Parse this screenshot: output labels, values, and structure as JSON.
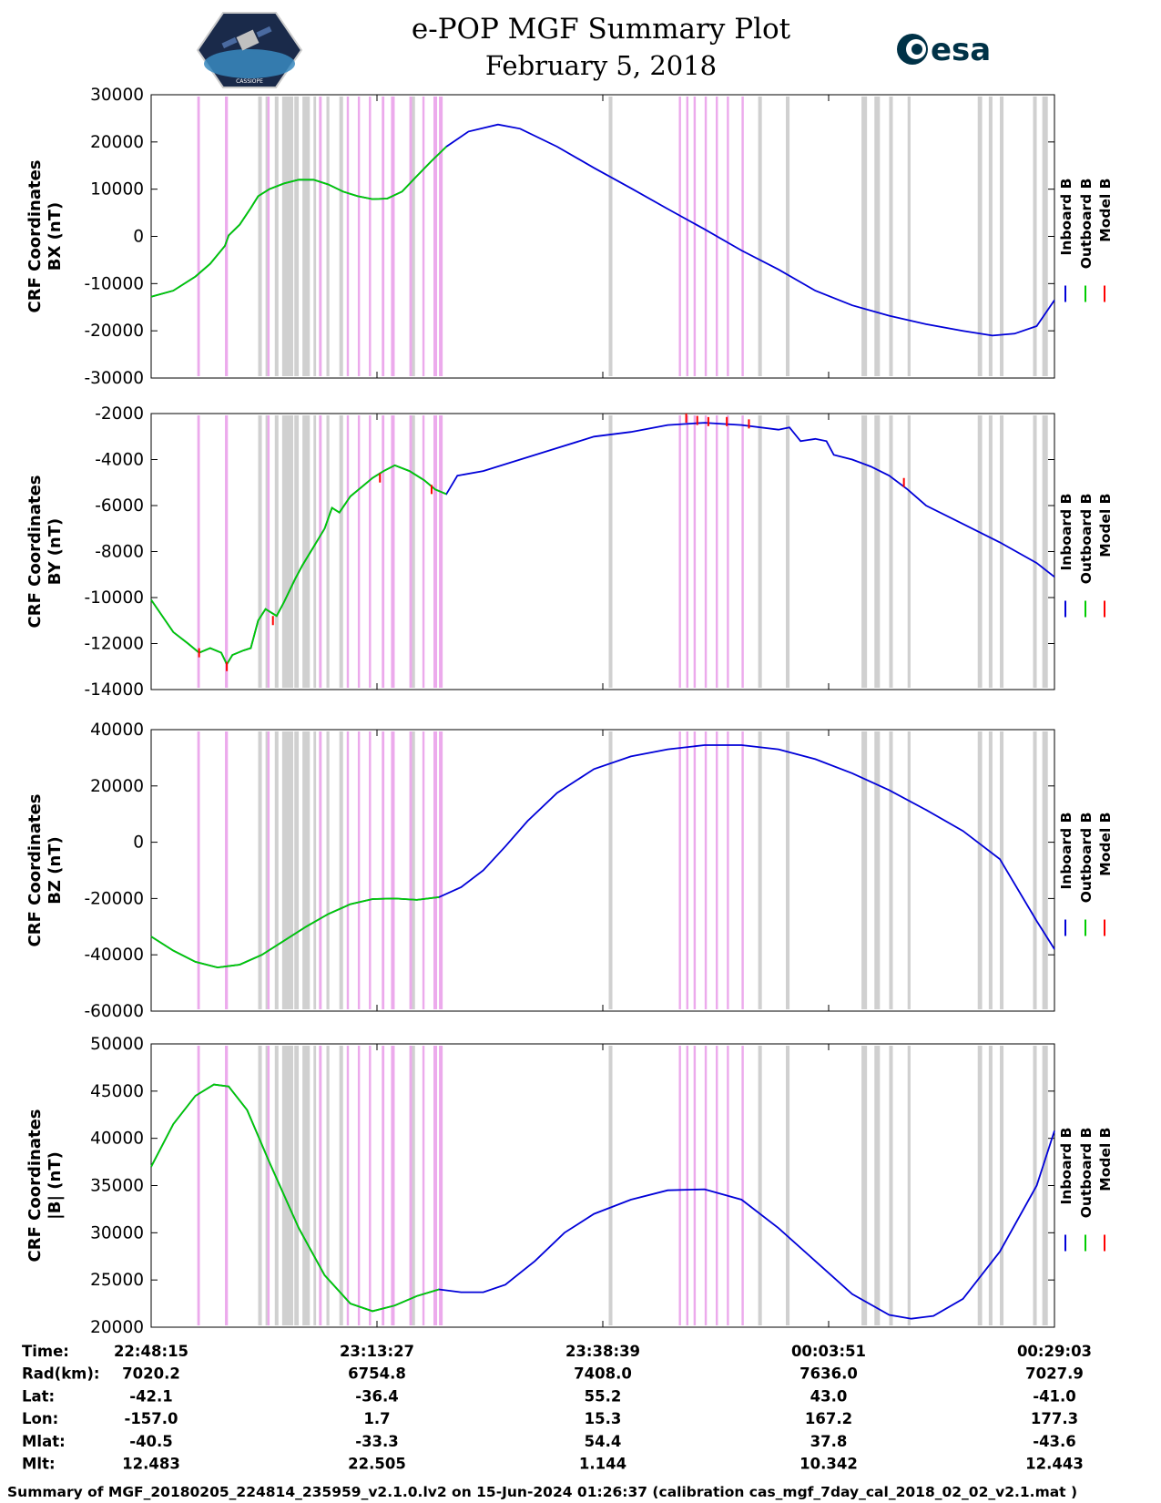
{
  "header": {
    "title": "e-POP MGF Summary Plot",
    "date": "February 5, 2018",
    "left_logo": {
      "label": "CASSIOPE"
    },
    "right_logo": {
      "label": "esa",
      "color": "#003247"
    }
  },
  "colors": {
    "inboard": "#0000d8",
    "outboard": "#00cc00",
    "model": "#ff0000",
    "gray_band": "#d0d0d0",
    "pink_band": "#ecaaec"
  },
  "chart_data": {
    "type": "line",
    "x_range": [
      0,
      2448
    ],
    "x_ticks": [
      0,
      612,
      1224,
      1836,
      2448
    ],
    "outboard_end": 800,
    "gray_bands": [
      [
        290,
        300
      ],
      [
        310,
        320
      ],
      [
        335,
        345
      ],
      [
        355,
        385
      ],
      [
        388,
        400
      ],
      [
        410,
        430
      ],
      [
        440,
        447
      ],
      [
        455,
        462
      ],
      [
        475,
        483
      ],
      [
        510,
        520
      ],
      [
        700,
        715
      ],
      [
        1240,
        1250
      ],
      [
        1645,
        1655
      ],
      [
        1720,
        1730
      ],
      [
        1925,
        1940
      ],
      [
        1960,
        1975
      ],
      [
        2000,
        2010
      ],
      [
        2050,
        2058
      ],
      [
        2240,
        2252
      ],
      [
        2270,
        2280
      ],
      [
        2300,
        2310
      ],
      [
        2390,
        2400
      ],
      [
        2415,
        2430
      ]
    ],
    "pink_bands": [
      [
        125,
        132
      ],
      [
        200,
        208
      ],
      [
        315,
        321
      ],
      [
        455,
        462
      ],
      [
        530,
        536
      ],
      [
        560,
        566
      ],
      [
        590,
        596
      ],
      [
        625,
        632
      ],
      [
        650,
        660
      ],
      [
        700,
        707
      ],
      [
        735,
        741
      ],
      [
        765,
        775
      ],
      [
        780,
        790
      ],
      [
        1430,
        1436
      ],
      [
        1450,
        1456
      ],
      [
        1470,
        1476
      ],
      [
        1500,
        1506
      ],
      [
        1530,
        1536
      ],
      [
        1560,
        1566
      ],
      [
        1600,
        1606
      ]
    ],
    "panels": [
      {
        "id": "bx",
        "ylabel_line1": "CRF Coordinates",
        "ylabel_line2": "BX (nT)",
        "ylim": [
          -30000,
          30000
        ],
        "yticks": [
          30000,
          20000,
          10000,
          0,
          -10000,
          -20000,
          -30000
        ],
        "tick_labels": [
          "30000",
          "20000",
          "10000",
          "0",
          "-10000",
          "-20000",
          "-30000"
        ],
        "points": [
          [
            0,
            -12800
          ],
          [
            60,
            -11500
          ],
          [
            120,
            -8500
          ],
          [
            160,
            -5800
          ],
          [
            200,
            -2000
          ],
          [
            210,
            200
          ],
          [
            240,
            2500
          ],
          [
            270,
            6000
          ],
          [
            290,
            8500
          ],
          [
            320,
            10000
          ],
          [
            360,
            11200
          ],
          [
            400,
            12000
          ],
          [
            440,
            12000
          ],
          [
            480,
            11000
          ],
          [
            520,
            9500
          ],
          [
            560,
            8500
          ],
          [
            600,
            7900
          ],
          [
            640,
            8000
          ],
          [
            680,
            9500
          ],
          [
            720,
            12800
          ],
          [
            760,
            16000
          ],
          [
            800,
            19000
          ],
          [
            860,
            22200
          ],
          [
            940,
            23700
          ],
          [
            1000,
            22800
          ],
          [
            1100,
            19000
          ],
          [
            1200,
            14500
          ],
          [
            1300,
            10200
          ],
          [
            1400,
            5800
          ],
          [
            1500,
            1500
          ],
          [
            1600,
            -3000
          ],
          [
            1700,
            -7000
          ],
          [
            1800,
            -11500
          ],
          [
            1900,
            -14600
          ],
          [
            2000,
            -16800
          ],
          [
            2100,
            -18600
          ],
          [
            2200,
            -20000
          ],
          [
            2280,
            -21000
          ],
          [
            2340,
            -20600
          ],
          [
            2400,
            -19000
          ],
          [
            2448,
            -13500
          ]
        ],
        "model_spikes": []
      },
      {
        "id": "by",
        "ylabel_line1": "CRF Coordinates",
        "ylabel_line2": "BY (nT)",
        "ylim": [
          -14000,
          -2000
        ],
        "yticks": [
          -2000,
          -4000,
          -6000,
          -8000,
          -10000,
          -12000,
          -14000
        ],
        "tick_labels": [
          "-2000",
          "-4000",
          "-6000",
          "-8000",
          "-10000",
          "-12000",
          "-14000"
        ],
        "points": [
          [
            0,
            -10100
          ],
          [
            30,
            -10800
          ],
          [
            60,
            -11500
          ],
          [
            100,
            -12000
          ],
          [
            130,
            -12400
          ],
          [
            160,
            -12200
          ],
          [
            190,
            -12400
          ],
          [
            205,
            -12900
          ],
          [
            220,
            -12500
          ],
          [
            250,
            -12300
          ],
          [
            270,
            -12200
          ],
          [
            290,
            -11000
          ],
          [
            310,
            -10500
          ],
          [
            340,
            -10800
          ],
          [
            360,
            -10200
          ],
          [
            390,
            -9200
          ],
          [
            410,
            -8600
          ],
          [
            440,
            -7800
          ],
          [
            470,
            -7000
          ],
          [
            490,
            -6100
          ],
          [
            510,
            -6300
          ],
          [
            540,
            -5600
          ],
          [
            570,
            -5200
          ],
          [
            600,
            -4800
          ],
          [
            630,
            -4500
          ],
          [
            660,
            -4250
          ],
          [
            700,
            -4500
          ],
          [
            740,
            -4900
          ],
          [
            770,
            -5300
          ],
          [
            800,
            -5500
          ],
          [
            830,
            -4700
          ],
          [
            900,
            -4500
          ],
          [
            1000,
            -4000
          ],
          [
            1100,
            -3500
          ],
          [
            1200,
            -3000
          ],
          [
            1300,
            -2800
          ],
          [
            1400,
            -2500
          ],
          [
            1500,
            -2400
          ],
          [
            1600,
            -2500
          ],
          [
            1700,
            -2700
          ],
          [
            1730,
            -2600
          ],
          [
            1760,
            -3200
          ],
          [
            1800,
            -3100
          ],
          [
            1830,
            -3200
          ],
          [
            1850,
            -3800
          ],
          [
            1900,
            -4000
          ],
          [
            1950,
            -4300
          ],
          [
            2000,
            -4700
          ],
          [
            2050,
            -5300
          ],
          [
            2100,
            -6000
          ],
          [
            2200,
            -6800
          ],
          [
            2300,
            -7600
          ],
          [
            2400,
            -8500
          ],
          [
            2448,
            -9100
          ]
        ],
        "model_spikes": [
          [
            130,
            -12400
          ],
          [
            205,
            -13000
          ],
          [
            330,
            -11000
          ],
          [
            620,
            -4800
          ],
          [
            760,
            -5300
          ],
          [
            1450,
            -2200
          ],
          [
            1480,
            -2300
          ],
          [
            1510,
            -2350
          ],
          [
            1560,
            -2350
          ],
          [
            1620,
            -2450
          ],
          [
            2040,
            -5000
          ]
        ]
      },
      {
        "id": "bz",
        "ylabel_line1": "CRF Coordinates",
        "ylabel_line2": "BZ (nT)",
        "ylim": [
          -60000,
          40000
        ],
        "yticks": [
          40000,
          20000,
          0,
          -20000,
          -40000,
          -60000
        ],
        "tick_labels": [
          "40000",
          "20000",
          "0",
          "-20000",
          "-40000",
          "-60000"
        ],
        "points": [
          [
            0,
            -33500
          ],
          [
            60,
            -38500
          ],
          [
            120,
            -42500
          ],
          [
            180,
            -44500
          ],
          [
            240,
            -43500
          ],
          [
            300,
            -40000
          ],
          [
            360,
            -35000
          ],
          [
            420,
            -30000
          ],
          [
            480,
            -25500
          ],
          [
            540,
            -22000
          ],
          [
            600,
            -20200
          ],
          [
            660,
            -20000
          ],
          [
            720,
            -20500
          ],
          [
            780,
            -19500
          ],
          [
            840,
            -16000
          ],
          [
            900,
            -10000
          ],
          [
            960,
            -1500
          ],
          [
            1020,
            7500
          ],
          [
            1100,
            17500
          ],
          [
            1200,
            26000
          ],
          [
            1300,
            30500
          ],
          [
            1400,
            33000
          ],
          [
            1500,
            34500
          ],
          [
            1600,
            34500
          ],
          [
            1700,
            33000
          ],
          [
            1800,
            29500
          ],
          [
            1900,
            24500
          ],
          [
            2000,
            18500
          ],
          [
            2100,
            11500
          ],
          [
            2200,
            4000
          ],
          [
            2300,
            -6000
          ],
          [
            2400,
            -28000
          ],
          [
            2448,
            -38000
          ]
        ],
        "model_spikes": []
      },
      {
        "id": "bmag",
        "ylabel_line1": "CRF Coordinates",
        "ylabel_line2": "|B| (nT)",
        "ylim": [
          20000,
          50000
        ],
        "yticks": [
          50000,
          45000,
          40000,
          35000,
          30000,
          25000,
          20000
        ],
        "tick_labels": [
          "50000",
          "45000",
          "40000",
          "35000",
          "30000",
          "25000",
          "20000"
        ],
        "points": [
          [
            0,
            37000
          ],
          [
            60,
            41500
          ],
          [
            120,
            44500
          ],
          [
            170,
            45700
          ],
          [
            210,
            45500
          ],
          [
            260,
            43000
          ],
          [
            320,
            37500
          ],
          [
            400,
            30500
          ],
          [
            470,
            25500
          ],
          [
            540,
            22500
          ],
          [
            600,
            21700
          ],
          [
            660,
            22300
          ],
          [
            720,
            23300
          ],
          [
            780,
            24000
          ],
          [
            840,
            23700
          ],
          [
            900,
            23700
          ],
          [
            960,
            24500
          ],
          [
            1040,
            27000
          ],
          [
            1120,
            30000
          ],
          [
            1200,
            32000
          ],
          [
            1300,
            33500
          ],
          [
            1400,
            34500
          ],
          [
            1500,
            34600
          ],
          [
            1600,
            33500
          ],
          [
            1700,
            30500
          ],
          [
            1800,
            27000
          ],
          [
            1900,
            23500
          ],
          [
            2000,
            21300
          ],
          [
            2060,
            20900
          ],
          [
            2120,
            21200
          ],
          [
            2200,
            23000
          ],
          [
            2300,
            28000
          ],
          [
            2400,
            35000
          ],
          [
            2448,
            40800
          ]
        ],
        "model_spikes": []
      }
    ],
    "legend": [
      "Inboard B",
      "Outboard B",
      "Model B"
    ]
  },
  "ephemeris": {
    "rows": [
      {
        "label": "Time:",
        "values": [
          "22:48:15",
          "23:13:27",
          "23:38:39",
          "00:03:51",
          "00:29:03"
        ]
      },
      {
        "label": "Rad(km):",
        "values": [
          "7020.2",
          "6754.8",
          "7408.0",
          "7636.0",
          "7027.9"
        ]
      },
      {
        "label": "Lat:",
        "values": [
          "-42.1",
          "-36.4",
          "55.2",
          "43.0",
          "-41.0"
        ]
      },
      {
        "label": "Lon:",
        "values": [
          "-157.0",
          "1.7",
          "15.3",
          "167.2",
          "177.3"
        ]
      },
      {
        "label": "Mlat:",
        "values": [
          "-40.5",
          "-33.3",
          "54.4",
          "37.8",
          "-43.6"
        ]
      },
      {
        "label": "Mlt:",
        "values": [
          "12.483",
          "22.505",
          "1.144",
          "10.342",
          "12.443"
        ]
      }
    ]
  },
  "footer": {
    "text": "Summary of MGF_20180205_224814_235959_v2.1.0.lv2 on 15-Jun-2024 01:26:37 (calibration cas_mgf_7day_cal_2018_02_02_v2.1.mat )"
  }
}
